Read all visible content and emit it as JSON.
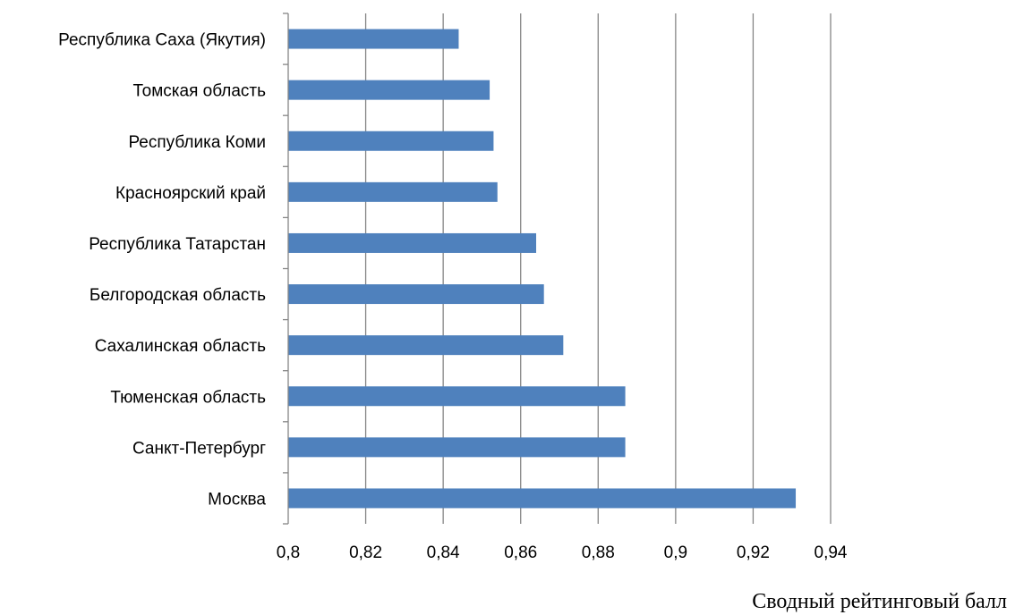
{
  "chart_data": {
    "type": "bar",
    "orientation": "horizontal",
    "title": "",
    "xlabel": "Сводный рейтинговый балл",
    "ylabel": "",
    "categories": [
      "Москва",
      "Санкт-Петербург",
      "Тюменская область",
      "Сахалинская область",
      "Белгородская область",
      "Республика Татарстан",
      "Красноярский край",
      "Республика Коми",
      "Томская область",
      "Республика Саха (Якутия)"
    ],
    "values": [
      0.931,
      0.887,
      0.887,
      0.871,
      0.866,
      0.864,
      0.854,
      0.853,
      0.852,
      0.844
    ],
    "xlim": [
      0.8,
      0.94
    ],
    "xticks": [
      "0,8",
      "0,82",
      "0,84",
      "0,86",
      "0,88",
      "0,9",
      "0,92",
      "0,94"
    ],
    "xtick_values": [
      0.8,
      0.82,
      0.84,
      0.86,
      0.88,
      0.9,
      0.92,
      0.94
    ],
    "grid": "vertical",
    "legend": "none",
    "bar_color": "#4f81bd",
    "grid_color": "#868686",
    "axis_color": "#868686"
  }
}
